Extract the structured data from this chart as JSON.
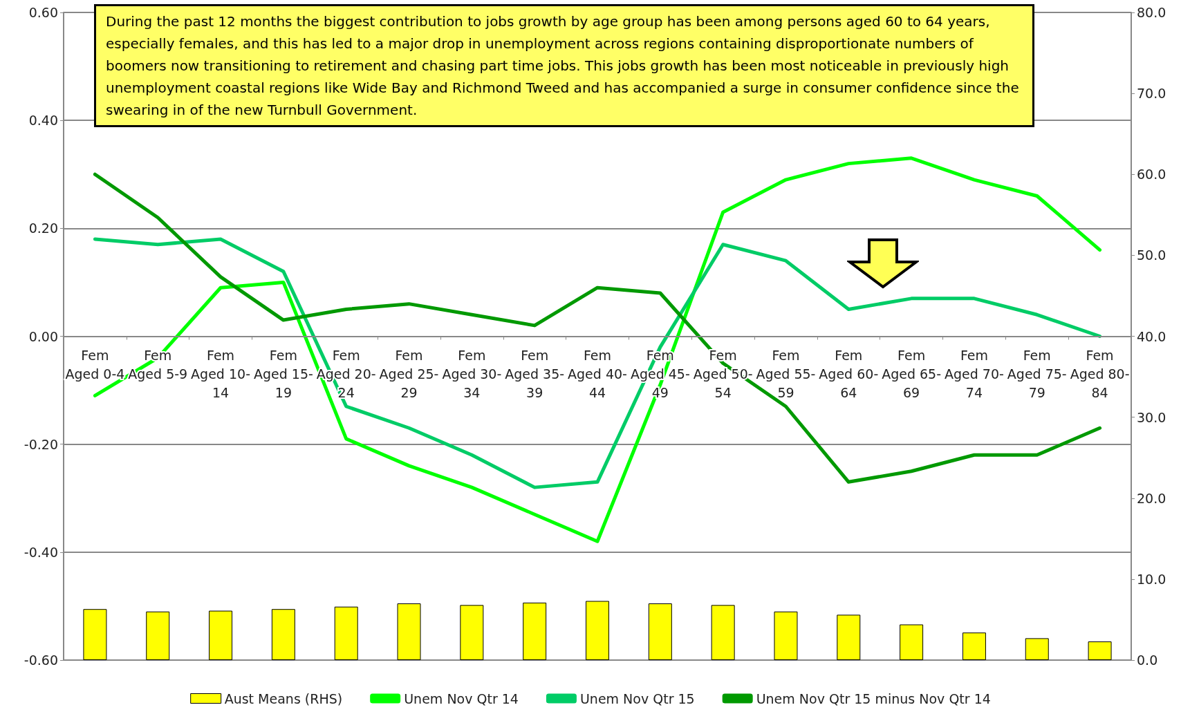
{
  "chart_data": {
    "type": "line",
    "categories": [
      "Fem Aged 0-4",
      "Fem Aged 5-9",
      "Fem Aged 10-14",
      "Fem Aged 15-19",
      "Fem Aged 20-24",
      "Fem Aged 25-29",
      "Fem Aged 30-34",
      "Fem Aged 35-39",
      "Fem Aged 40-44",
      "Fem Aged 45-49",
      "Fem Aged 50-54",
      "Fem Aged 55-59",
      "Fem Aged 60-64",
      "Fem Aged 65-69",
      "Fem Aged 70-74",
      "Fem Aged 75-79",
      "Fem Aged 80-84"
    ],
    "series": [
      {
        "name": "Aust Means (RHS)",
        "type": "bar",
        "axis": "y2",
        "color": "#ffff00",
        "values": [
          6.3,
          6.0,
          6.1,
          6.3,
          6.6,
          7.0,
          6.8,
          7.1,
          7.3,
          7.0,
          6.8,
          6.0,
          5.6,
          4.4,
          3.4,
          2.7,
          2.3
        ]
      },
      {
        "name": "Unem Nov Qtr 14",
        "color": "#00ff00",
        "values": [
          -0.11,
          -0.04,
          0.09,
          0.1,
          -0.19,
          -0.24,
          -0.28,
          -0.33,
          -0.38,
          -0.09,
          0.23,
          0.29,
          0.32,
          0.33,
          0.29,
          0.26,
          0.16
        ]
      },
      {
        "name": "Unem Nov Qtr 15",
        "color": "#00cc66",
        "values": [
          0.18,
          0.17,
          0.18,
          0.12,
          -0.13,
          -0.17,
          -0.22,
          -0.28,
          -0.27,
          -0.02,
          0.17,
          0.14,
          0.05,
          0.07,
          0.07,
          0.04,
          0.0
        ]
      },
      {
        "name": "Unem Nov Qtr 15 minus Nov Qtr 14",
        "color": "#009900",
        "values": [
          0.3,
          0.22,
          0.11,
          0.03,
          0.05,
          0.06,
          0.04,
          0.02,
          0.09,
          0.08,
          -0.05,
          -0.13,
          -0.27,
          -0.25,
          -0.22,
          -0.22,
          -0.17
        ]
      }
    ],
    "ylim": [
      -0.6,
      0.6
    ],
    "yticks": [
      {
        "value": -0.6,
        "label": "-0.60"
      },
      {
        "value": -0.4,
        "label": "-0.40"
      },
      {
        "value": -0.2,
        "label": "-0.20"
      },
      {
        "value": 0,
        "label": "0.00"
      },
      {
        "value": 0.2,
        "label": "0.20"
      },
      {
        "value": 0.4,
        "label": "0.40"
      },
      {
        "value": 0.6,
        "label": "0.60"
      }
    ],
    "y2lim": [
      0,
      80
    ],
    "y2ticks": [
      {
        "value": 0,
        "label": "0.0"
      },
      {
        "value": 10,
        "label": "10.0"
      },
      {
        "value": 20,
        "label": "20.0"
      },
      {
        "value": 30,
        "label": "30.0"
      },
      {
        "value": 40,
        "label": "40.0"
      },
      {
        "value": 50,
        "label": "50.0"
      },
      {
        "value": 60,
        "label": "60.0"
      },
      {
        "value": 70,
        "label": "70.0"
      },
      {
        "value": 80,
        "label": "80.0"
      }
    ],
    "grid": "y",
    "legend": "bottom",
    "marker": "none",
    "line_style": "solid",
    "annotations": [
      "During the past 12 months the biggest contribution to jobs growth by age group has been among persons aged 60 to 64 years, especially females, and this has led to a major drop in unemployment across regions containing disproportionate numbers of boomers now transitioning to retirement and chasing part time jobs. This jobs growth has been most noticeable in previously high unemployment coastal regions like Wide Bay and Richmond Tweed and has accompanied a surge in consumer confidence since the swearing in of the new Turnbull Government."
    ]
  }
}
